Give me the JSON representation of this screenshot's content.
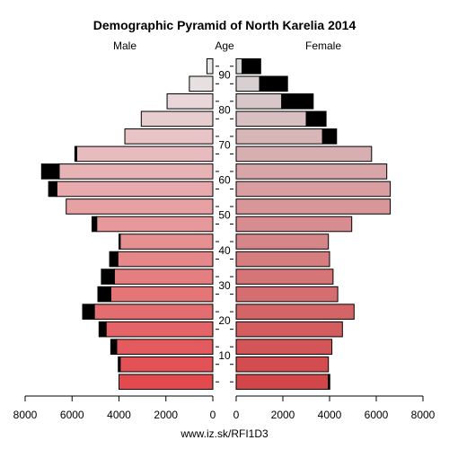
{
  "chart_data": {
    "type": "bar",
    "title": "Demographic Pyramid of North Karelia 2014",
    "left_label": "Male",
    "center_label": "Age",
    "right_label": "Female",
    "footer": "www.iz.sk/RFI1D3",
    "age_groups": [
      "0-4",
      "5-9",
      "10-14",
      "15-19",
      "20-24",
      "25-29",
      "30-34",
      "35-39",
      "40-44",
      "45-49",
      "50-54",
      "55-59",
      "60-64",
      "65-69",
      "70-74",
      "75-79",
      "80-84",
      "85-89",
      "90+"
    ],
    "age_ticks": [
      "10",
      "20",
      "30",
      "40",
      "50",
      "60",
      "70",
      "80",
      "90"
    ],
    "x_ticks_left": [
      "8000",
      "6000",
      "4000",
      "2000",
      "0"
    ],
    "x_ticks_right": [
      "0",
      "2000",
      "4000",
      "6000",
      "8000"
    ],
    "xlim": [
      0,
      8000
    ],
    "series": [
      {
        "name": "Male",
        "values": [
          4000,
          3950,
          4100,
          4550,
          5050,
          4350,
          4200,
          4050,
          3950,
          4950,
          6250,
          6650,
          6550,
          5800,
          3750,
          3050,
          1950,
          1000,
          250
        ],
        "excess": [
          0,
          80,
          250,
          300,
          500,
          550,
          550,
          350,
          50,
          200,
          0,
          350,
          750,
          80,
          0,
          0,
          0,
          0,
          0
        ]
      },
      {
        "name": "Female",
        "values": [
          3950,
          3950,
          4100,
          4550,
          5050,
          4350,
          4150,
          4000,
          3950,
          4950,
          6600,
          6600,
          6450,
          5800,
          3700,
          3000,
          1950,
          1000,
          250
        ],
        "excess": [
          60,
          0,
          0,
          0,
          0,
          0,
          0,
          0,
          0,
          0,
          0,
          0,
          0,
          0,
          600,
          850,
          1350,
          1200,
          800
        ]
      }
    ],
    "colors": {
      "excess": "#000000",
      "young": "#e24a4d",
      "mid": "#e8a8aa",
      "old": "#e8e8ea"
    }
  }
}
